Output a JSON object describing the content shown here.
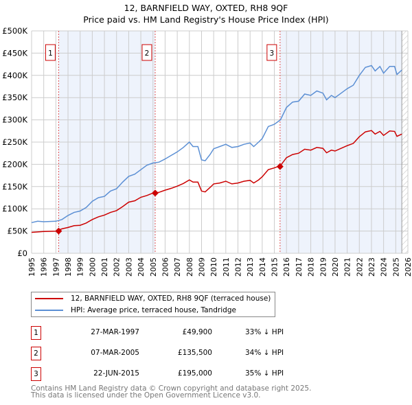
{
  "chart_data": {
    "type": "line",
    "title": "12, BARNFIELD WAY, OXTED, RH8 9QF",
    "subtitle": "Price paid vs. HM Land Registry's House Price Index (HPI)",
    "xlim": [
      1995,
      2026
    ],
    "ylim": [
      0,
      500000
    ],
    "x_ticks": [
      "1995",
      "1996",
      "1997",
      "1998",
      "1999",
      "2000",
      "2001",
      "2002",
      "2003",
      "2004",
      "2005",
      "2006",
      "2007",
      "2008",
      "2009",
      "2010",
      "2011",
      "2012",
      "2013",
      "2014",
      "2015",
      "2016",
      "2017",
      "2018",
      "2019",
      "2020",
      "2021",
      "2022",
      "2023",
      "2024",
      "2025",
      "2026"
    ],
    "y_ticks": [
      {
        "v": 0,
        "l": "£0"
      },
      {
        "v": 50000,
        "l": "£50K"
      },
      {
        "v": 100000,
        "l": "£100K"
      },
      {
        "v": 150000,
        "l": "£150K"
      },
      {
        "v": 200000,
        "l": "£200K"
      },
      {
        "v": 250000,
        "l": "£250K"
      },
      {
        "v": 300000,
        "l": "£300K"
      },
      {
        "v": 350000,
        "l": "£350K"
      },
      {
        "v": 400000,
        "l": "£400K"
      },
      {
        "v": 450000,
        "l": "£450K"
      },
      {
        "v": 500000,
        "l": "£500K"
      }
    ],
    "grid": true,
    "x": [
      1995,
      1995.5,
      1996,
      1997,
      1997.5,
      1998,
      1998.5,
      1999,
      1999.5,
      2000,
      2000.5,
      2001,
      2001.5,
      2002,
      2002.5,
      2003,
      2003.5,
      2004,
      2004.5,
      2005,
      2005.5,
      2006,
      2006.5,
      2007,
      2007.5,
      2008,
      2008.3,
      2008.7,
      2009,
      2009.3,
      2009.7,
      2010,
      2010.5,
      2011,
      2011.5,
      2012,
      2012.5,
      2013,
      2013.3,
      2013.7,
      2014,
      2014.5,
      2015,
      2015.5,
      2016,
      2016.5,
      2017,
      2017.5,
      2018,
      2018.5,
      2019,
      2019.3,
      2019.7,
      2020,
      2020.5,
      2021,
      2021.5,
      2022,
      2022.5,
      2023,
      2023.3,
      2023.7,
      2024,
      2024.5,
      2024.9,
      2025.1,
      2025.5
    ],
    "series": [
      {
        "name": "12, BARNFIELD WAY, OXTED, RH8 9QF (terraced house)",
        "color": "#cc0000",
        "values": [
          47,
          48,
          49,
          49.9,
          55,
          58,
          62,
          63,
          68,
          76,
          82,
          86,
          92,
          96,
          105,
          115,
          118,
          126,
          130,
          135.5,
          137,
          142,
          146,
          151,
          157,
          165,
          160,
          160,
          140,
          138,
          148,
          156,
          158,
          162,
          156,
          158,
          162,
          164,
          158,
          165,
          172,
          188,
          192,
          197,
          215,
          222,
          225,
          234,
          232,
          238,
          236,
          226,
          232,
          230,
          236,
          242,
          247,
          262,
          273,
          276,
          268,
          274,
          265,
          275,
          274,
          263,
          268
        ]
      },
      {
        "name": "HPI: Average price, terraced house, Tandridge",
        "color": "#5b8fd4",
        "values": [
          69,
          72,
          71,
          72,
          76,
          85,
          92,
          95,
          103,
          117,
          125,
          128,
          140,
          145,
          160,
          173,
          178,
          188,
          198,
          203,
          205,
          212,
          220,
          228,
          238,
          250,
          240,
          240,
          210,
          208,
          222,
          235,
          240,
          245,
          238,
          240,
          245,
          248,
          240,
          250,
          258,
          285,
          290,
          300,
          328,
          340,
          342,
          358,
          355,
          365,
          360,
          345,
          355,
          350,
          360,
          370,
          378,
          400,
          418,
          422,
          410,
          420,
          405,
          420,
          420,
          402,
          412
        ]
      }
    ],
    "value_unit": "thousands GBP",
    "sales": [
      {
        "n": "1",
        "x": 1997.23,
        "date": "27-MAR-1997",
        "price": "£49,900",
        "value": 49900,
        "hpi": "33% ↓ HPI"
      },
      {
        "n": "2",
        "x": 2005.18,
        "date": "07-MAR-2005",
        "price": "£135,500",
        "value": 135500,
        "hpi": "34% ↓ HPI"
      },
      {
        "n": "3",
        "x": 2015.47,
        "date": "22-JUN-2015",
        "price": "£195,000",
        "value": 195000,
        "hpi": "35% ↓ HPI"
      }
    ],
    "forecast_from": 2025.5,
    "legend": "bottom"
  },
  "footer": [
    "Contains HM Land Registry data © Crown copyright and database right 2025.",
    "This data is licensed under the Open Government Licence v3.0."
  ]
}
